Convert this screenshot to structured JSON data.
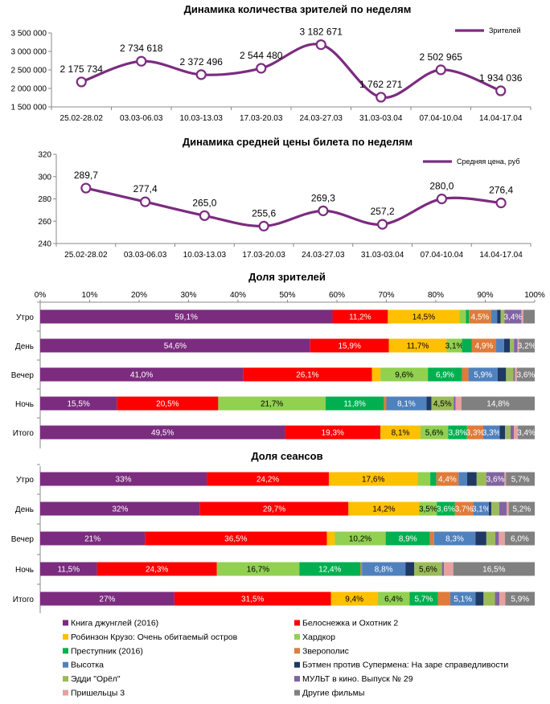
{
  "chart_data": [
    {
      "id": "viewers",
      "type": "line",
      "title": "Динамика количества зрителей по неделям",
      "legend": "Зрителей",
      "legend_position": "top-right",
      "color": "#7b2c7f",
      "categories": [
        "25.02-28.02",
        "03.03-06.03",
        "10.03-13.03",
        "17.03-20.03",
        "24.03-27.03",
        "31.03-03.04",
        "07.04-10.04",
        "14.04-17.04"
      ],
      "values": [
        2175734,
        2734618,
        2372496,
        2544480,
        3182671,
        1762271,
        2502965,
        1934036
      ],
      "value_labels": [
        "2 175 734",
        "2 734 618",
        "2 372 496",
        "2 544 480",
        "3 182 671",
        "1 762 271",
        "2 502 965",
        "1 934 036"
      ],
      "yticks": [
        1500000,
        2000000,
        2500000,
        3000000,
        3500000
      ],
      "ytick_labels": [
        "1 500 000",
        "2 000 000",
        "2 500 000",
        "3 000 000",
        "3 500 000"
      ],
      "ylim": [
        1500000,
        3500000
      ]
    },
    {
      "id": "price",
      "type": "line",
      "title": "Динамика средней цены билета по неделям",
      "legend": "Средняя цена, руб",
      "legend_position": "top-right",
      "color": "#7b2c7f",
      "categories": [
        "25.02-28.02",
        "03.03-06.03",
        "10.03-13.03",
        "17.03-20.03",
        "24.03-27.03",
        "31.03-03.04",
        "07.04-10.04",
        "14.04-17.04"
      ],
      "values": [
        289.7,
        277.4,
        265.0,
        255.6,
        269.3,
        257.2,
        280.0,
        276.4
      ],
      "value_labels": [
        "289,7",
        "277,4",
        "265,0",
        "255,6",
        "269,3",
        "257,2",
        "280,0",
        "276,4"
      ],
      "yticks": [
        240,
        260,
        280,
        300,
        320
      ],
      "ytick_labels": [
        "240",
        "260",
        "280",
        "300",
        "320"
      ],
      "ylim": [
        240,
        320
      ]
    },
    {
      "id": "viewers_share",
      "type": "bar",
      "stacked": "percent",
      "orientation": "horizontal",
      "title": "Доля зрителей",
      "xtick_labels": [
        "0%",
        "10%",
        "20%",
        "30%",
        "40%",
        "50%",
        "60%",
        "70%",
        "80%",
        "90%",
        "100%"
      ],
      "categories": [
        "Утро",
        "День",
        "Вечер",
        "Ночь",
        "Итого"
      ],
      "rows": [
        {
          "values": [
            59.1,
            11.2,
            14.5,
            1.3,
            0.6,
            4.5,
            1.2,
            0.7,
            0.8,
            3.4,
            0.4,
            2.3
          ],
          "labels": [
            "59,1%",
            "11,2%",
            "14,5%",
            "",
            "",
            "4,5%",
            "",
            "",
            "",
            "3,4%",
            "",
            ""
          ]
        },
        {
          "values": [
            54.6,
            15.9,
            11.7,
            3.1,
            2.0,
            4.9,
            1.6,
            1.2,
            0.8,
            0.7,
            0.3,
            3.2
          ],
          "labels": [
            "54,6%",
            "15,9%",
            "11,7%",
            "3,1%",
            "",
            "4,9%",
            "",
            "",
            "",
            "",
            "",
            "3,2%"
          ]
        },
        {
          "values": [
            41.0,
            26.1,
            1.7,
            9.6,
            6.9,
            1.3,
            5.9,
            1.7,
            1.5,
            0.3,
            0.4,
            3.6
          ],
          "labels": [
            "41,0%",
            "26,1%",
            "",
            "9,6%",
            "6,9%",
            "",
            "5,9%",
            "",
            "",
            "",
            "",
            "3,6%"
          ]
        },
        {
          "values": [
            15.5,
            20.5,
            0.0,
            21.7,
            11.8,
            0.5,
            8.1,
            1.0,
            4.5,
            0.4,
            1.2,
            14.8
          ],
          "labels": [
            "15,5%",
            "20,5%",
            "",
            "21,7%",
            "11,8%",
            "",
            "8,1%",
            "",
            "4,5%",
            "",
            "",
            "14,8%"
          ]
        },
        {
          "values": [
            49.5,
            19.3,
            8.1,
            5.6,
            3.8,
            3.3,
            3.3,
            1.1,
            1.1,
            0.7,
            0.8,
            3.4
          ],
          "labels": [
            "49,5%",
            "19,3%",
            "8,1%",
            "5,6%",
            "3,8%",
            "3,3%",
            "3,3%",
            "",
            "",
            "",
            "",
            "3,4%"
          ]
        }
      ]
    },
    {
      "id": "sessions_share",
      "type": "bar",
      "stacked": "percent",
      "orientation": "horizontal",
      "title": "Доля сеансов",
      "categories": [
        "Утро",
        "День",
        "Вечер",
        "Ночь",
        "Итого"
      ],
      "rows": [
        {
          "values": [
            33.0,
            24.2,
            17.6,
            2.5,
            1.2,
            4.4,
            1.7,
            1.9,
            1.9,
            3.6,
            0.3,
            5.7
          ],
          "labels": [
            "33%",
            "24,2%",
            "17,6%",
            "",
            "",
            "4,4%",
            "",
            "",
            "",
            "3,6%",
            "",
            "5,7%"
          ]
        },
        {
          "values": [
            32.0,
            29.7,
            14.2,
            3.5,
            3.6,
            3.7,
            3.1,
            0.5,
            1.6,
            1.5,
            0.4,
            5.2
          ],
          "labels": [
            "32%",
            "29,7%",
            "14,2%",
            "3,5%",
            "3,6%",
            "3,7%",
            "3,1%",
            "",
            "",
            "",
            "",
            "5,2%"
          ]
        },
        {
          "values": [
            21.0,
            36.5,
            1.6,
            10.2,
            8.9,
            0.8,
            8.3,
            2.2,
            1.8,
            0.7,
            1.2,
            6.0
          ],
          "labels": [
            "21%",
            "36,5%",
            "",
            "10,2%",
            "8,9%",
            "",
            "8,3%",
            "",
            "",
            "",
            "",
            "6,0%"
          ]
        },
        {
          "values": [
            11.5,
            24.3,
            0.0,
            16.7,
            12.4,
            0.3,
            8.8,
            1.8,
            5.6,
            0.4,
            1.9,
            16.5
          ],
          "labels": [
            "11,5%",
            "24,3%",
            "",
            "16,7%",
            "12,4%",
            "",
            "8,8%",
            "",
            "5,6%",
            "",
            "",
            "16,5%"
          ]
        },
        {
          "values": [
            27.0,
            31.5,
            9.4,
            6.4,
            5.7,
            2.5,
            5.1,
            1.6,
            2.3,
            0.9,
            1.2,
            5.9
          ],
          "labels": [
            "27%",
            "31,5%",
            "9,4%",
            "6,4%",
            "5,7%",
            "",
            "5,1%",
            "",
            "",
            "",
            "",
            "5,9%"
          ]
        }
      ]
    }
  ],
  "legend_series": [
    {
      "name": "Книга джунглей (2016)",
      "color": "#7b2c7f"
    },
    {
      "name": "Белоснежка и Охотник 2",
      "color": "#fe0000"
    },
    {
      "name": "Робинзон Крузо: Очень обитаемый остров",
      "color": "#fec000"
    },
    {
      "name": "Хардкор",
      "color": "#92d050"
    },
    {
      "name": "Преступник (2016)",
      "color": "#00b050"
    },
    {
      "name": "Зверополис",
      "color": "#e07b39"
    },
    {
      "name": "Высотка",
      "color": "#4f81bd"
    },
    {
      "name": "Бэтмен против Супермена: На заре справедливости",
      "color": "#1f3864"
    },
    {
      "name": "Эдди \"Орёл\"",
      "color": "#9bbb59"
    },
    {
      "name": "МУЛЬТ в кино. Выпуск № 29",
      "color": "#8064a2"
    },
    {
      "name": "Пришельцы 3",
      "color": "#e6a0a0"
    },
    {
      "name": "Другие фильмы",
      "color": "#808080"
    }
  ]
}
